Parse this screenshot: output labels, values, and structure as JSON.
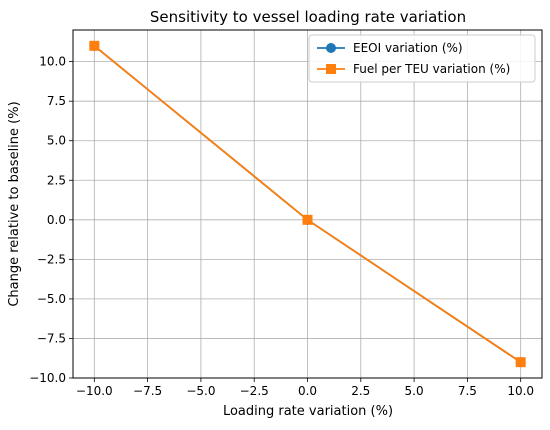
{
  "chart_data": {
    "type": "line",
    "title": "Sensitivity to vessel loading rate variation",
    "xlabel": "Loading rate variation (%)",
    "ylabel": "Change relative to baseline (%)",
    "xlim": [
      -11,
      11
    ],
    "ylim": [
      -10,
      12
    ],
    "xticks": [
      -10.0,
      -7.5,
      -5.0,
      -2.5,
      0.0,
      2.5,
      5.0,
      7.5,
      10.0
    ],
    "xtick_labels": [
      "−10.0",
      "−7.5",
      "−5.0",
      "−2.5",
      "0.0",
      "2.5",
      "5.0",
      "7.5",
      "10.0"
    ],
    "yticks": [
      -10.0,
      -7.5,
      -5.0,
      -2.5,
      0.0,
      2.5,
      5.0,
      7.5,
      10.0
    ],
    "ytick_labels": [
      "−10.0",
      "−7.5",
      "−5.0",
      "−2.5",
      "0.0",
      "2.5",
      "5.0",
      "7.5",
      "10.0"
    ],
    "grid": true,
    "legend_position": "top-right",
    "x": [
      -10,
      0,
      10
    ],
    "series": [
      {
        "name": "EEOI variation (%)",
        "values": [
          11,
          0,
          -9
        ],
        "color": "#1f77b4",
        "marker": "circle"
      },
      {
        "name": "Fuel per TEU variation (%)",
        "values": [
          11,
          0,
          -9
        ],
        "color": "#ff7f0e",
        "marker": "square"
      }
    ]
  }
}
